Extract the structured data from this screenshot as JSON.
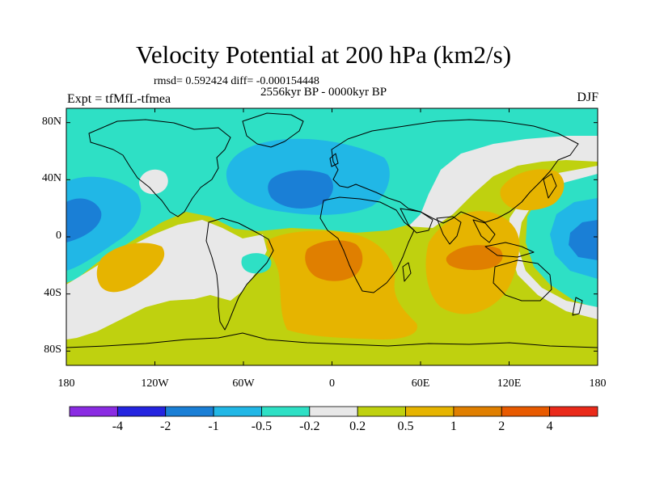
{
  "title": "Velocity Potential at 200 hPa (km2/s)",
  "stats": "rmsd= 0.592424 diff= -0.000154448",
  "period": "2556kyr BP - 0000kyr BP",
  "experiment": "Expt = tfMfL-tfmea",
  "season": "DJF",
  "map": {
    "lat_labels": [
      {
        "text": "80N",
        "lat": 80
      },
      {
        "text": "40N",
        "lat": 40
      },
      {
        "text": "0",
        "lat": 0
      },
      {
        "text": "40S",
        "lat": -40
      },
      {
        "text": "80S",
        "lat": -80
      }
    ],
    "lon_labels": [
      {
        "text": "180",
        "lon": -180
      },
      {
        "text": "120W",
        "lon": -120
      },
      {
        "text": "60W",
        "lon": -60
      },
      {
        "text": "0",
        "lon": 0
      },
      {
        "text": "60E",
        "lon": 60
      },
      {
        "text": "120E",
        "lon": 120
      },
      {
        "text": "180",
        "lon": 180
      }
    ],
    "lat_range": [
      -90,
      90
    ],
    "lon_range": [
      -180,
      180
    ]
  },
  "colorbar": {
    "colors": [
      "#8a2be2",
      "#2424e0",
      "#1a7fd6",
      "#21b7e6",
      "#2ee0c5",
      "#e8e8e8",
      "#bfd10f",
      "#e6b400",
      "#e07f00",
      "#e85a00",
      "#ea2a1a"
    ],
    "labels": [
      "-4",
      "-2",
      "-1",
      "-0.5",
      "-0.2",
      "0.2",
      "0.5",
      "1",
      "2",
      "4"
    ]
  }
}
